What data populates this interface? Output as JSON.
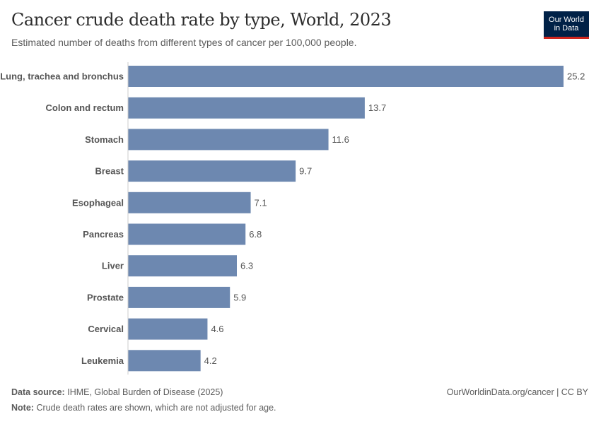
{
  "header": {
    "title": "Cancer crude death rate by type, World, 2023",
    "subtitle": "Estimated number of deaths from different types of cancer per 100,000 people.",
    "logo": {
      "line1": "Our World",
      "line2": "in Data"
    }
  },
  "chart_data": {
    "type": "bar",
    "orientation": "horizontal",
    "title": "Cancer crude death rate by type, World, 2023",
    "categories": [
      "Lung, trachea and bronchus",
      "Colon and rectum",
      "Stomach",
      "Breast",
      "Esophageal",
      "Pancreas",
      "Liver",
      "Prostate",
      "Cervical",
      "Leukemia"
    ],
    "values": [
      25.2,
      13.7,
      11.6,
      9.7,
      7.1,
      6.8,
      6.3,
      5.9,
      4.6,
      4.2
    ],
    "xlim": [
      0,
      25.2
    ],
    "grid": false,
    "bar_color": "#6d88b0"
  },
  "footer": {
    "source_label": "Data source:",
    "source": "IHME, Global Burden of Disease (2025)",
    "note_label": "Note:",
    "note": "Crude death rates are shown, which are not adjusted for age.",
    "url": "OurWorldinData.org/cancer | CC BY"
  }
}
